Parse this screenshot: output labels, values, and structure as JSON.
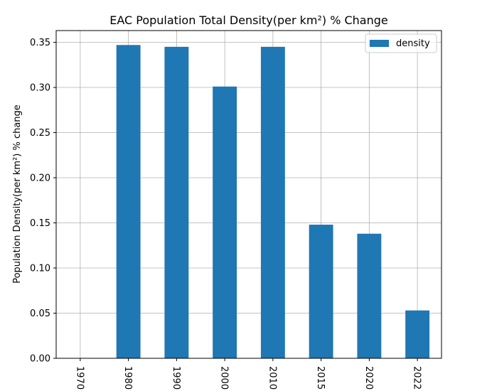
{
  "chart_data": {
    "type": "bar",
    "title": "EAC Population Total Density(per km²) % Change",
    "xlabel": "",
    "ylabel": "Population Density(per km²) % change",
    "categories": [
      "1970",
      "1980",
      "1990",
      "2000",
      "2010",
      "2015",
      "2020",
      "2022"
    ],
    "series": [
      {
        "name": "density",
        "values": [
          0,
          0.347,
          0.345,
          0.301,
          0.345,
          0.148,
          0.138,
          0.053
        ],
        "color": "#1f77b4"
      }
    ],
    "ylim": [
      0,
      0.363
    ],
    "yticks": [
      "0.00",
      "0.05",
      "0.10",
      "0.15",
      "0.20",
      "0.25",
      "0.30",
      "0.35"
    ],
    "grid": true,
    "legend_position": "top-right",
    "x_tick_rotation": "vertical"
  }
}
